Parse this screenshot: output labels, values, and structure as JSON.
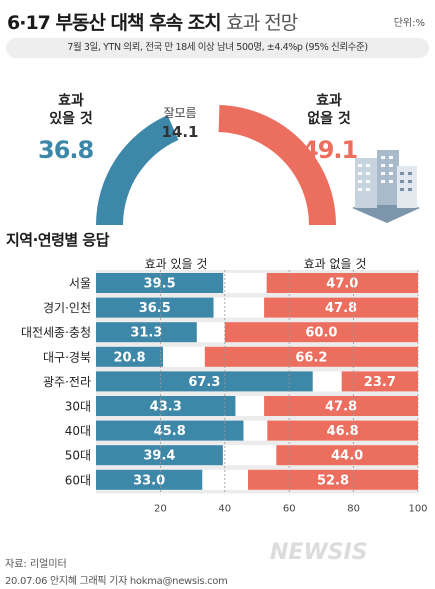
{
  "header": {
    "title_main": "6·17 부동산 대책 후속 조치",
    "title_sub": "효과 전망",
    "unit": "단위:%",
    "subtitle": "7월 3일, YTN  의뢰, 전국 만 18세 이상 남녀 500명, ±4.4%p (95% 신뢰수준)"
  },
  "summary": {
    "effective_label_line1": "효과",
    "effective_label_line2": "있을 것",
    "effective_value": "36.8",
    "unsure_label": "잘모름",
    "unsure_value": "14.1",
    "ineffective_label_line1": "효과",
    "ineffective_label_line2": "없을 것",
    "ineffective_value": "49.1"
  },
  "section": {
    "title": "지역·연령별 응답",
    "col_effective": "효과 있을 것",
    "col_ineffective": "효과 없을 것"
  },
  "colors": {
    "effective": "#3d87a8",
    "ineffective": "#ec6e5f",
    "unsure": "#ffffff",
    "row_bg": "#ececec"
  },
  "chart_data": [
    {
      "type": "pie",
      "slices": [
        {
          "label": "효과 있을 것",
          "value": 36.8
        },
        {
          "label": "잘모름",
          "value": 14.1
        },
        {
          "label": "효과 없을 것",
          "value": 49.1
        }
      ]
    },
    {
      "type": "bar",
      "orientation": "horizontal",
      "stacked": true,
      "title": "지역·연령별 응답",
      "categories": [
        "서울",
        "경기·인천",
        "대전세종·충청",
        "대구·경북",
        "광주·전라",
        "30대",
        "40대",
        "50대",
        "60대"
      ],
      "series": [
        {
          "name": "효과 있을 것",
          "values": [
            39.5,
            36.5,
            31.3,
            20.8,
            67.3,
            43.3,
            45.8,
            39.4,
            33.0
          ]
        },
        {
          "name": "효과 없을 것",
          "values": [
            47.0,
            47.8,
            60.0,
            66.2,
            23.7,
            47.8,
            46.8,
            44.0,
            52.8
          ]
        }
      ],
      "xlim": [
        0,
        100
      ],
      "xticks": [
        "20",
        "40",
        "60",
        "80",
        "100"
      ]
    }
  ],
  "footer": {
    "source": "자료: 리얼미터",
    "credit": "20.07.06 안지혜 그래픽 기자 hokma@newsis.com",
    "watermark": "NEWSIS"
  }
}
